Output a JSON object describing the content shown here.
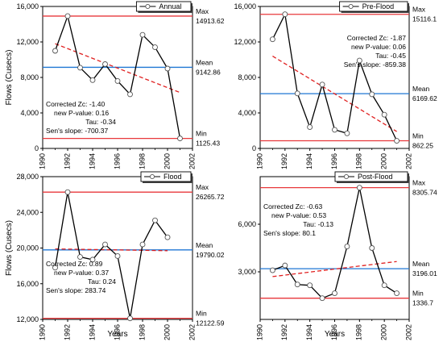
{
  "chart_data": [
    {
      "type": "line",
      "legend": "Annual",
      "x": [
        1991,
        1992,
        1993,
        1994,
        1995,
        1996,
        1997,
        1998,
        1999,
        2000,
        2001
      ],
      "y": [
        11000,
        14913.62,
        9100,
        7700,
        9500,
        7600,
        6100,
        12800,
        11400,
        9000,
        1125.43
      ],
      "xlim": [
        1990,
        2002
      ],
      "xticks": [
        1990,
        1992,
        1994,
        1996,
        1998,
        2000,
        2002
      ],
      "ylim": [
        0,
        16000
      ],
      "yticks": [
        0,
        4000,
        8000,
        12000,
        16000
      ],
      "ytick_labels": [
        "0",
        "4,000",
        "8,000",
        "12,000",
        "16,000"
      ],
      "ylabel": "Flows (Cusecs)",
      "xlabel": "",
      "max": 14913.62,
      "mean": 9142.86,
      "min": 1125.43,
      "max_text": "14913.62",
      "mean_text": "9142.86",
      "min_text": "1125.43",
      "trend": [
        11800,
        6300
      ],
      "stats": [
        "Corrected Zc: -1.40",
        "new P-value: 0.16",
        "Tau: -0.34",
        "Sen's slope: -700.37"
      ],
      "stats_anchor": "lower-left"
    },
    {
      "type": "line",
      "legend": "Pre-Flood",
      "x": [
        1991,
        1992,
        1993,
        1994,
        1995,
        1996,
        1997,
        1998,
        1999,
        2000,
        2001
      ],
      "y": [
        12300,
        15116.1,
        6200,
        2400,
        7200,
        2100,
        1700,
        9900,
        6100,
        3800,
        862.25
      ],
      "xlim": [
        1990,
        2002
      ],
      "xticks": [
        1990,
        1992,
        1994,
        1996,
        1998,
        2000,
        2002
      ],
      "ylim": [
        0,
        16000
      ],
      "yticks": [
        0,
        4000,
        8000,
        12000,
        16000
      ],
      "ytick_labels": [
        "0",
        "4,000",
        "8,000",
        "12,000",
        "16,000"
      ],
      "ylabel": "",
      "xlabel": "",
      "max": 15116.1,
      "mean": 6169.62,
      "min": 862.25,
      "max_text": "15116.1",
      "mean_text": "6169.62",
      "min_text": "862.25",
      "trend": [
        10400,
        1900
      ],
      "stats": [
        "Corrected Zc: -1.87",
        "new P-value: 0.06",
        "Tau: -0.45",
        "Sen's slope: -859.38"
      ],
      "stats_anchor": "upper-right"
    },
    {
      "type": "line",
      "legend": "Flood",
      "x": [
        1991,
        1992,
        1993,
        1994,
        1995,
        1996,
        1997,
        1998,
        1999,
        2000
      ],
      "y": [
        17800,
        26265.72,
        19000,
        18700,
        20400,
        19100,
        12122.59,
        20400,
        23100,
        21200
      ],
      "xlim": [
        1990,
        2002
      ],
      "xticks": [
        1990,
        1992,
        1994,
        1996,
        1998,
        2000,
        2002
      ],
      "ylim": [
        12000,
        28000
      ],
      "yticks": [
        12000,
        16000,
        20000,
        24000,
        28000
      ],
      "ytick_labels": [
        "12,000",
        "16,000",
        "20,000",
        "24,000",
        "28,000"
      ],
      "ylabel": "Flows (Cusecs)",
      "xlabel": "Years",
      "max": 26265.72,
      "mean": 19790.02,
      "min": 12122.59,
      "max_text": "26265.72",
      "mean_text": "19790.02",
      "min_text": "12122.59",
      "trend": [
        19900,
        19700
      ],
      "stats": [
        "Corrected Zc: 0.89",
        "new P-value: 0.37",
        "Tau: 0.24",
        "Sen's slope: 283.74"
      ],
      "stats_anchor": "lower-left"
    },
    {
      "type": "line",
      "legend": "Post-Flood",
      "x": [
        1991,
        1992,
        1993,
        1994,
        1995,
        1996,
        1997,
        1998,
        1999,
        2000,
        2001
      ],
      "y": [
        3100,
        3400,
        2200,
        2150,
        1336.7,
        1650,
        4600,
        8305.74,
        4500,
        2150,
        1650
      ],
      "xlim": [
        1990,
        2002
      ],
      "xticks": [
        1990,
        1992,
        1994,
        1996,
        1998,
        2000,
        2002
      ],
      "ylim": [
        0,
        9000
      ],
      "yticks": [
        3000,
        6000
      ],
      "ytick_labels": [
        "3,000",
        "6,000"
      ],
      "ylabel": "",
      "xlabel": "Years",
      "max": 8305.74,
      "mean": 3196.01,
      "min": 1336.7,
      "max_text": "8305.74",
      "mean_text": "3196.01",
      "min_text": "1336.7",
      "trend": [
        2700,
        3650
      ],
      "stats": [
        "Corrected Zc: -0.63",
        "new P-value: 0.53",
        "Tau: -0.13",
        "Sen's slope: 80.1"
      ],
      "stats_anchor": "upper-left"
    }
  ],
  "ref_labels": {
    "max": "Max",
    "mean": "Mean",
    "min": "Min"
  },
  "colors": {
    "series": "#000000",
    "max_min": "#e8383b",
    "mean": "#1f77d4",
    "trend": "#e02020",
    "marker_fill": "#ffffff"
  }
}
